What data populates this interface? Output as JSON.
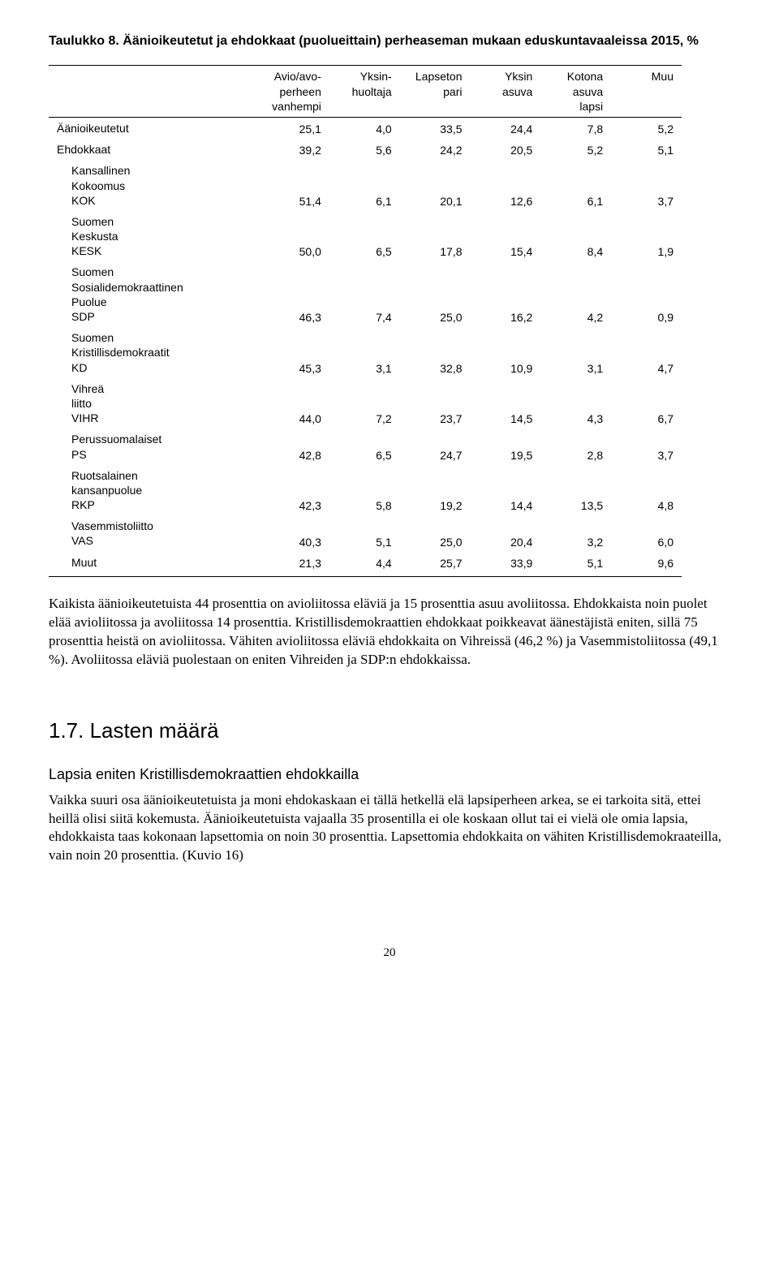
{
  "table": {
    "title": "Taulukko 8. Äänioikeutetut ja ehdokkaat (puolueittain) perheaseman mukaan eduskuntavaaleissa 2015, %",
    "columns": [
      "Avio/avo-\nperheen\nvanhempi",
      "Yksin-\nhuoltaja",
      "Lapseton\npari",
      "Yksin\nasuva",
      "Kotona\nasuva\nlapsi",
      "Muu"
    ],
    "rows": [
      {
        "label": "Äänioikeutetut",
        "indent": false,
        "values": [
          "25,1",
          "4,0",
          "33,5",
          "24,4",
          "7,8",
          "5,2"
        ]
      },
      {
        "label": "Ehdokkaat",
        "indent": false,
        "values": [
          "39,2",
          "5,6",
          "24,2",
          "20,5",
          "5,2",
          "5,1"
        ]
      },
      {
        "label": "Kansallinen\nKokoomus\nKOK",
        "indent": true,
        "values": [
          "51,4",
          "6,1",
          "20,1",
          "12,6",
          "6,1",
          "3,7"
        ]
      },
      {
        "label": "Suomen\nKeskusta\nKESK",
        "indent": true,
        "values": [
          "50,0",
          "6,5",
          "17,8",
          "15,4",
          "8,4",
          "1,9"
        ]
      },
      {
        "label": "Suomen\nSosialidemokraattinen\nPuolue\nSDP",
        "indent": true,
        "values": [
          "46,3",
          "7,4",
          "25,0",
          "16,2",
          "4,2",
          "0,9"
        ]
      },
      {
        "label": "Suomen\nKristillisdemokraatit\nKD",
        "indent": true,
        "values": [
          "45,3",
          "3,1",
          "32,8",
          "10,9",
          "3,1",
          "4,7"
        ]
      },
      {
        "label": "Vihreä\nliitto\nVIHR",
        "indent": true,
        "values": [
          "44,0",
          "7,2",
          "23,7",
          "14,5",
          "4,3",
          "6,7"
        ]
      },
      {
        "label": "Perussuomalaiset\nPS",
        "indent": true,
        "values": [
          "42,8",
          "6,5",
          "24,7",
          "19,5",
          "2,8",
          "3,7"
        ]
      },
      {
        "label": "Ruotsalainen\nkansanpuolue\nRKP",
        "indent": true,
        "values": [
          "42,3",
          "5,8",
          "19,2",
          "14,4",
          "13,5",
          "4,8"
        ]
      },
      {
        "label": "Vasemmistoliitto\nVAS",
        "indent": true,
        "values": [
          "40,3",
          "5,1",
          "25,0",
          "20,4",
          "3,2",
          "6,0"
        ]
      },
      {
        "label": "Muut",
        "indent": true,
        "values": [
          "21,3",
          "4,4",
          "25,7",
          "33,9",
          "5,1",
          "9,6"
        ]
      }
    ]
  },
  "paragraph1": "Kaikista äänioikeutetuista 44 prosenttia on avioliitossa eläviä ja 15 prosenttia asuu avoliitossa. Ehdokkaista noin puolet elää avioliitossa ja avoliitossa 14 prosenttia. Kristillisdemokraattien ehdokkaat poikkeavat äänestäjistä eniten, sillä 75 prosenttia heistä on avioliitossa. Vähiten avioliitossa eläviä ehdokkaita on Vihreissä (46,2 %) ja Vasemmistoliitossa (49,1 %). Avoliitossa eläviä puolestaan on eniten Vihreiden ja SDP:n ehdokkaissa.",
  "section_heading": "1.7. Lasten määrä",
  "subheading": "Lapsia eniten Kristillisdemokraattien ehdokkailla",
  "paragraph2": "Vaikka suuri osa äänioikeutetuista ja moni ehdokaskaan ei tällä hetkellä elä lapsiperheen arkea, se ei tarkoita sitä, ettei heillä olisi siitä kokemusta. Äänioikeutetuista vajaalla 35 prosentilla ei ole koskaan ollut tai ei vielä ole omia lapsia, ehdokkaista taas kokonaan lapsettomia on noin 30 prosenttia. Lapsettomia ehdokkaita on vähiten Kristillisdemokraateilla, vain noin 20 prosenttia. (Kuvio 16)",
  "page_number": "20"
}
